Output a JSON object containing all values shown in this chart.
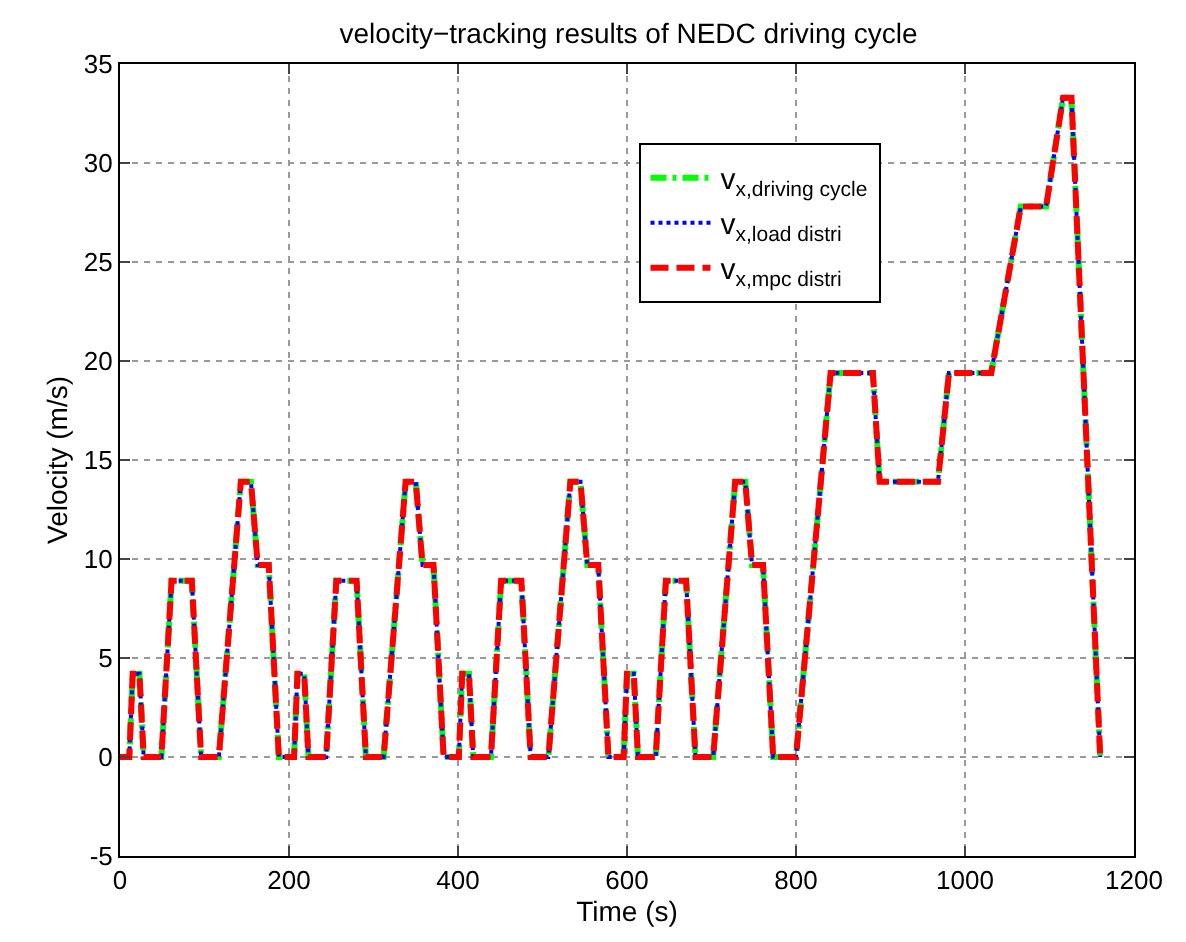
{
  "chart_data": {
    "type": "line",
    "title": "velocity−tracking results of NEDC driving cycle",
    "xlabel": "Time (s)",
    "ylabel": "Velocity (m/s)",
    "x": [
      0,
      11,
      15,
      23,
      28,
      49,
      61,
      85,
      96,
      117,
      143,
      155,
      163,
      176,
      188,
      195,
      206,
      210,
      218,
      223,
      244,
      256,
      280,
      291,
      312,
      338,
      350,
      358,
      371,
      383,
      390,
      401,
      405,
      413,
      418,
      439,
      451,
      475,
      486,
      507,
      533,
      545,
      553,
      566,
      578,
      585,
      596,
      600,
      608,
      613,
      634,
      646,
      670,
      681,
      702,
      728,
      740,
      748,
      761,
      773,
      780,
      800,
      841,
      891,
      899,
      968,
      981,
      1031,
      1066,
      1096,
      1116,
      1126,
      1160
    ],
    "series": [
      {
        "name": "v$_{x,driving cycle}$",
        "color": "#00ff00",
        "line_style": "dashdot",
        "values": [
          0,
          0,
          4.2,
          4.2,
          0,
          0,
          8.9,
          8.9,
          0,
          0,
          13.9,
          13.9,
          9.7,
          9.7,
          0,
          0,
          0,
          4.2,
          4.2,
          0,
          0,
          8.9,
          8.9,
          0,
          0,
          13.9,
          13.9,
          9.7,
          9.7,
          0,
          0,
          0,
          4.2,
          4.2,
          0,
          0,
          8.9,
          8.9,
          0,
          0,
          13.9,
          13.9,
          9.7,
          9.7,
          0,
          0,
          0,
          4.2,
          4.2,
          0,
          0,
          8.9,
          8.9,
          0,
          0,
          13.9,
          13.9,
          9.7,
          9.7,
          0,
          0,
          0,
          19.4,
          19.4,
          13.9,
          13.9,
          19.4,
          19.4,
          27.8,
          27.8,
          33.3,
          33.3,
          0
        ]
      },
      {
        "name": "v$_{x,load distri}$",
        "color": "#0000ff",
        "line_style": "dotted",
        "values": [
          0,
          0,
          4.2,
          4.2,
          0,
          0,
          8.9,
          8.9,
          0,
          0,
          13.9,
          13.9,
          9.7,
          9.7,
          0,
          0,
          0,
          4.2,
          4.2,
          0,
          0,
          8.9,
          8.9,
          0,
          0,
          13.9,
          13.9,
          9.7,
          9.7,
          0,
          0,
          0,
          4.2,
          4.2,
          0,
          0,
          8.9,
          8.9,
          0,
          0,
          13.9,
          13.9,
          9.7,
          9.7,
          0,
          0,
          0,
          4.2,
          4.2,
          0,
          0,
          8.9,
          8.9,
          0,
          0,
          13.9,
          13.9,
          9.7,
          9.7,
          0,
          0,
          0,
          19.4,
          19.4,
          13.9,
          13.9,
          19.4,
          19.4,
          27.8,
          27.8,
          33.3,
          33.3,
          0
        ]
      },
      {
        "name": "v$_{x,mpc distri}$",
        "color": "#ff0000",
        "line_style": "dashed",
        "values": [
          0,
          0,
          4.2,
          4.2,
          0,
          0,
          8.9,
          8.9,
          0,
          0,
          13.9,
          13.9,
          9.7,
          9.7,
          0,
          0,
          0,
          4.2,
          4.2,
          0,
          0,
          8.9,
          8.9,
          0,
          0,
          13.9,
          13.9,
          9.7,
          9.7,
          0,
          0,
          0,
          4.2,
          4.2,
          0,
          0,
          8.9,
          8.9,
          0,
          0,
          13.9,
          13.9,
          9.7,
          9.7,
          0,
          0,
          0,
          4.2,
          4.2,
          0,
          0,
          8.9,
          8.9,
          0,
          0,
          13.9,
          13.9,
          9.7,
          9.7,
          0,
          0,
          0,
          19.4,
          19.4,
          13.9,
          13.9,
          19.4,
          19.4,
          27.8,
          27.8,
          33.3,
          33.3,
          0
        ]
      }
    ],
    "xlim": [
      0,
      1200
    ],
    "xticks": [
      0,
      200,
      400,
      600,
      800,
      1000,
      1200
    ],
    "ylim": [
      -5,
      35
    ],
    "yticks": [
      -5,
      0,
      5,
      10,
      15,
      20,
      25,
      30,
      35
    ],
    "grid": true,
    "legend": "top right"
  }
}
